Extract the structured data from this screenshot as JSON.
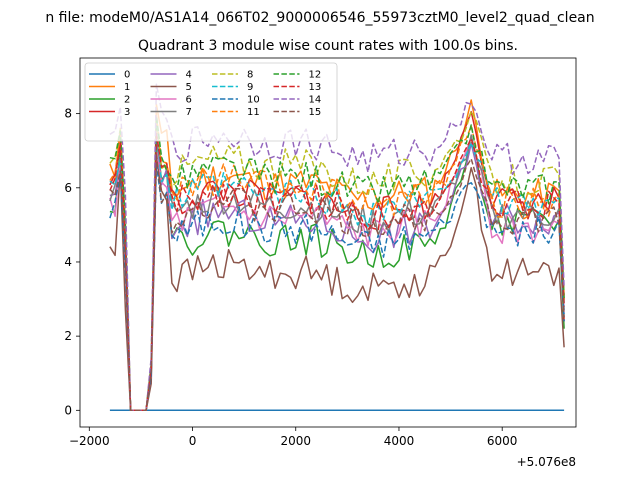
{
  "chart_data": {
    "type": "line",
    "suptitle": "n file: modeM0/AS1A14_066T02_9000006546_55973cztM0_level2_quad_clean",
    "title": "Quadrant 3 module wise count rates with 100.0s bins.",
    "xlabel": "",
    "ylabel": "",
    "x_offset_label": "+5.076e8",
    "xlim": [
      -2180,
      7430
    ],
    "ylim": [
      -0.45,
      9.5
    ],
    "x_ticks": [
      -2000,
      0,
      2000,
      4000,
      6000
    ],
    "x_tick_labels": [
      "−2000",
      "0",
      "2000",
      "4000",
      "6000"
    ],
    "y_ticks": [
      0,
      2,
      4,
      6,
      8
    ],
    "y_tick_labels": [
      "0",
      "2",
      "4",
      "6",
      "8"
    ],
    "legend_location": "upper-left",
    "legend_columns": 4,
    "x_start": -1600,
    "x_step": 100,
    "gap_range": [
      -1300,
      -900
    ],
    "series": [
      {
        "name": "0",
        "color": "#1f77b4",
        "dash": "solid",
        "kind": "zero"
      },
      {
        "name": "1",
        "color": "#ff7f0e",
        "dash": "solid",
        "base": 6.0,
        "peak": 8.2,
        "dip_early": 7.8,
        "drop": 5.8,
        "end": 3.1,
        "seed": 11
      },
      {
        "name": "2",
        "color": "#2ca02c",
        "dash": "solid",
        "base": 4.5,
        "peak": 7.2,
        "dip_early": 7.2,
        "drop": 5.0,
        "end": 2.2,
        "seed": 22
      },
      {
        "name": "3",
        "color": "#d62728",
        "dash": "solid",
        "base": 5.6,
        "peak": 8.2,
        "dip_early": 7.0,
        "drop": 5.6,
        "end": 2.4,
        "seed": 33
      },
      {
        "name": "4",
        "color": "#9467bd",
        "dash": "solid",
        "base": 5.0,
        "peak": 7.0,
        "dip_early": 6.8,
        "drop": 5.2,
        "end": 2.7,
        "seed": 44
      },
      {
        "name": "5",
        "color": "#8c564b",
        "dash": "solid",
        "base": 3.6,
        "peak": 6.5,
        "dip_early": 6.5,
        "drop": 3.7,
        "end": 1.7,
        "seed": 55
      },
      {
        "name": "6",
        "color": "#e377c2",
        "dash": "solid",
        "base": 5.1,
        "peak": 7.5,
        "dip_early": 6.6,
        "drop": 4.9,
        "end": 2.6,
        "seed": 66
      },
      {
        "name": "7",
        "color": "#7f7f7f",
        "dash": "solid",
        "base": 5.4,
        "peak": 7.2,
        "dip_early": 6.9,
        "drop": 5.3,
        "end": 2.9,
        "seed": 77
      },
      {
        "name": "8",
        "color": "#bcbd22",
        "dash": "dashed",
        "base": 6.5,
        "peak": 8.0,
        "dip_early": 7.5,
        "drop": 6.2,
        "end": 3.0,
        "seed": 88
      },
      {
        "name": "9",
        "color": "#17becf",
        "dash": "dashed",
        "base": 5.7,
        "peak": 7.3,
        "dip_early": 7.0,
        "drop": 5.6,
        "end": 2.6,
        "seed": 99
      },
      {
        "name": "10",
        "color": "#1f77b4",
        "dash": "dashed",
        "base": 4.8,
        "peak": 6.3,
        "dip_early": 6.4,
        "drop": 4.8,
        "end": 2.4,
        "seed": 101
      },
      {
        "name": "11",
        "color": "#ff7f0e",
        "dash": "dashed",
        "base": 5.9,
        "peak": 7.7,
        "dip_early": 7.4,
        "drop": 5.6,
        "end": 2.9,
        "seed": 111
      },
      {
        "name": "12",
        "color": "#2ca02c",
        "dash": "dashed",
        "base": 6.2,
        "peak": 7.6,
        "dip_early": 7.4,
        "drop": 6.0,
        "end": 3.0,
        "seed": 121
      },
      {
        "name": "13",
        "color": "#d62728",
        "dash": "dashed",
        "base": 5.6,
        "peak": 7.1,
        "dip_early": 7.0,
        "drop": 5.5,
        "end": 2.8,
        "seed": 131
      },
      {
        "name": "14",
        "color": "#9467bd",
        "dash": "dashed",
        "base": 7.1,
        "peak": 8.4,
        "dip_early": 8.4,
        "drop": 6.8,
        "end": 3.3,
        "seed": 141
      },
      {
        "name": "15",
        "color": "#8c564b",
        "dash": "dashed",
        "base": 5.3,
        "peak": 6.8,
        "dip_early": 6.6,
        "drop": 5.1,
        "end": 2.5,
        "seed": 151
      }
    ]
  }
}
